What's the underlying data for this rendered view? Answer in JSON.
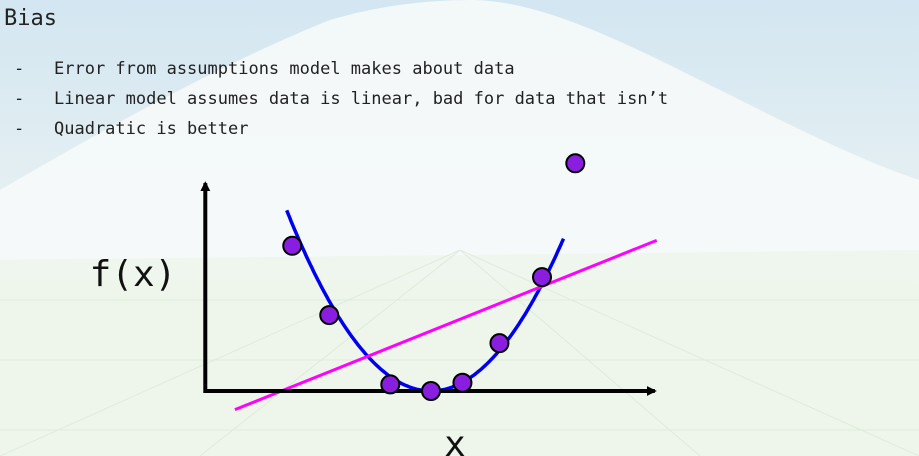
{
  "slide": {
    "title": "Bias",
    "bullets": [
      "Error from assumptions model makes about data",
      "Linear model assumes data is linear, bad for data that isn’t",
      "Quadratic is better"
    ],
    "bullet_marker": "-"
  },
  "colors": {
    "linear_fit": "#ff00ff",
    "quadratic_fit": "#0000ee",
    "points_fill": "#8a1ee0",
    "points_stroke": "#000000",
    "axes": "#000000"
  },
  "chart_data": {
    "type": "scatter",
    "title": "",
    "xlabel": "x",
    "ylabel": "f(x)",
    "grid": false,
    "points": [
      {
        "x": -3.75,
        "y": 4.4
      },
      {
        "x": -2.75,
        "y": 2.3
      },
      {
        "x": -1.1,
        "y": 0.2
      },
      {
        "x": 0.0,
        "y": 0.0
      },
      {
        "x": 0.85,
        "y": 0.25
      },
      {
        "x": 1.85,
        "y": 1.45
      },
      {
        "x": 3.0,
        "y": 3.45
      },
      {
        "x": 3.9,
        "y": 6.9
      }
    ],
    "fits": [
      {
        "kind": "quadratic",
        "equation": "y = 0.36*x^2"
      },
      {
        "kind": "linear",
        "equation": "y = 0.45*x + 1.82"
      }
    ],
    "xlim": [
      -6.5,
      7.5
    ],
    "ylim": [
      -0.75,
      7.5
    ]
  }
}
